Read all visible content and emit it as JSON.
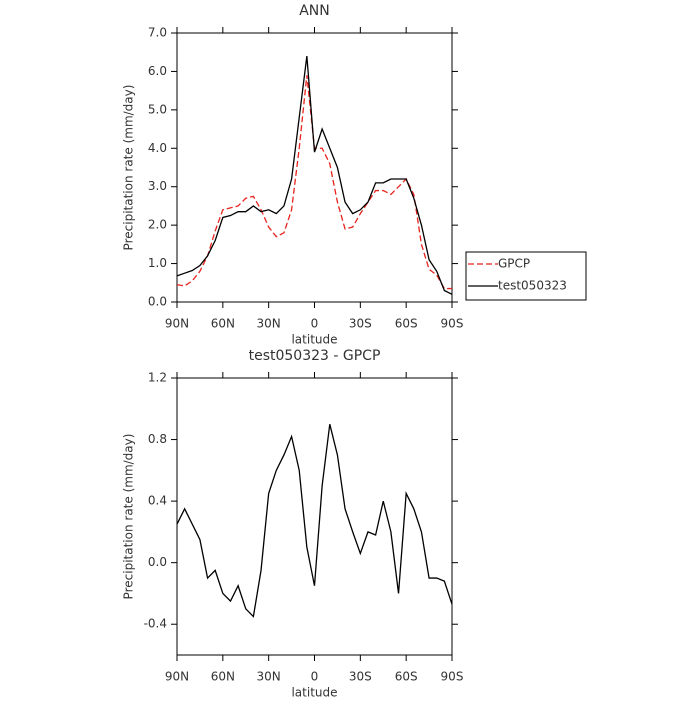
{
  "chart_data": [
    {
      "type": "line",
      "title": "ANN",
      "xlabel": "latitude",
      "ylabel": "Precipitation rate (mm/day)",
      "x": [
        90,
        85,
        80,
        75,
        70,
        65,
        60,
        55,
        50,
        45,
        40,
        35,
        30,
        25,
        20,
        15,
        10,
        5,
        0,
        -5,
        -10,
        -15,
        -20,
        -25,
        -30,
        -35,
        -40,
        -45,
        -50,
        -55,
        -60,
        -65,
        -70,
        -75,
        -80,
        -85,
        -90
      ],
      "series": [
        {
          "name": "GPCP",
          "color": "#e8221c",
          "dashed": true,
          "values": [
            0.45,
            0.42,
            0.55,
            0.8,
            1.2,
            1.85,
            2.4,
            2.45,
            2.5,
            2.7,
            2.75,
            2.4,
            1.95,
            1.7,
            1.8,
            2.4,
            4.0,
            5.9,
            4.0,
            4.0,
            3.6,
            2.6,
            1.9,
            1.95,
            2.3,
            2.6,
            2.9,
            2.9,
            2.8,
            3.0,
            3.2,
            2.8,
            1.5,
            0.85,
            0.7,
            0.35,
            0.35
          ]
        },
        {
          "name": "test050323",
          "color": "#000000",
          "dashed": false,
          "values": [
            0.68,
            0.75,
            0.82,
            0.95,
            1.2,
            1.6,
            2.2,
            2.25,
            2.35,
            2.35,
            2.5,
            2.35,
            2.4,
            2.3,
            2.5,
            3.2,
            4.8,
            6.4,
            3.9,
            4.5,
            4.0,
            3.5,
            2.6,
            2.3,
            2.4,
            2.6,
            3.1,
            3.1,
            3.2,
            3.2,
            3.2,
            2.7,
            2.0,
            1.1,
            0.8,
            0.3,
            0.2
          ]
        }
      ],
      "xlim": [
        90,
        -90
      ],
      "xticks": [
        {
          "value": 90,
          "label": "90N"
        },
        {
          "value": 60,
          "label": "60N"
        },
        {
          "value": 30,
          "label": "30N"
        },
        0,
        {
          "value": -30,
          "label": "30S"
        },
        {
          "value": -60,
          "label": "60S"
        },
        {
          "value": -90,
          "label": "90S"
        }
      ],
      "ylim": [
        0,
        7
      ],
      "yticks": [
        {
          "value": 0,
          "label": "0.0"
        },
        {
          "value": 1,
          "label": "1.0"
        },
        {
          "value": 2,
          "label": "2.0"
        },
        {
          "value": 3,
          "label": "3.0"
        },
        {
          "value": 4,
          "label": "4.0"
        },
        {
          "value": 5,
          "label": "5.0"
        },
        {
          "value": 6,
          "label": "6.0"
        },
        {
          "value": 7,
          "label": "7.0"
        }
      ],
      "legend": "right"
    },
    {
      "type": "line",
      "title": "test050323 - GPCP",
      "xlabel": "latitude",
      "ylabel": "Precipitation rate (mm/day)",
      "x": [
        90,
        85,
        80,
        75,
        70,
        65,
        60,
        55,
        50,
        45,
        40,
        35,
        30,
        25,
        20,
        15,
        10,
        5,
        0,
        -5,
        -10,
        -15,
        -20,
        -25,
        -30,
        -35,
        -40,
        -45,
        -50,
        -55,
        -60,
        -65,
        -70,
        -75,
        -80,
        -85,
        -90
      ],
      "series": [
        {
          "color": "#000000",
          "dashed": false,
          "values": [
            0.25,
            0.35,
            0.25,
            0.15,
            -0.1,
            -0.05,
            -0.2,
            -0.25,
            -0.15,
            -0.3,
            -0.35,
            -0.05,
            0.45,
            0.6,
            0.7,
            0.82,
            0.6,
            0.1,
            -0.15,
            0.5,
            0.9,
            0.7,
            0.35,
            0.2,
            0.06,
            0.2,
            0.18,
            0.4,
            0.2,
            -0.2,
            0.45,
            0.35,
            0.2,
            -0.1,
            -0.1,
            -0.12,
            -0.27
          ]
        }
      ],
      "xlim": [
        90,
        -90
      ],
      "xticks": [
        {
          "value": 90,
          "label": "90N"
        },
        {
          "value": 60,
          "label": "60N"
        },
        {
          "value": 30,
          "label": "30N"
        },
        0,
        {
          "value": -30,
          "label": "30S"
        },
        {
          "value": -60,
          "label": "60S"
        },
        {
          "value": -90,
          "label": "90S"
        }
      ],
      "ylim": [
        -0.6,
        1.2
      ],
      "yticks": [
        -0.4,
        {
          "value": 0,
          "label": "0.0"
        },
        0.4,
        0.8,
        1.2
      ]
    }
  ]
}
